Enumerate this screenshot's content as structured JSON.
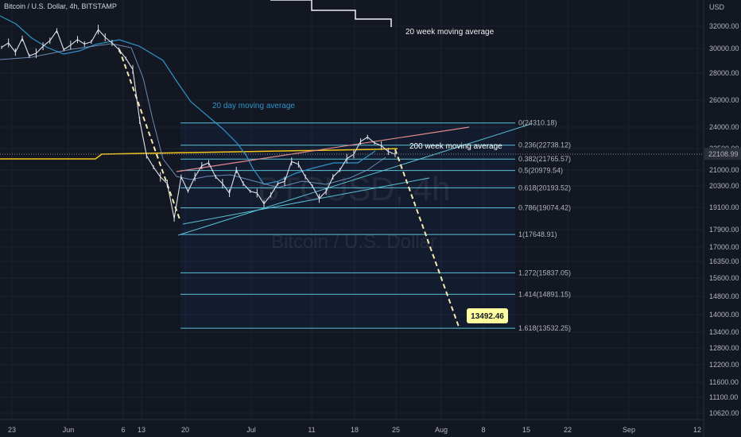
{
  "header": {
    "symbol_title": "Bitcoin / U.S. Dollar, 4h, BITSTAMP"
  },
  "watermark": {
    "symbol": "BTCUSD, 4h",
    "name": "Bitcoin / U.S. Dollar"
  },
  "colors": {
    "background": "#131722",
    "grid": "#1e2230",
    "fib": "#5ac1d6",
    "ma20d": "#2e93c9",
    "ma200w": "#f5c518",
    "ma20w": "#f0f0f0",
    "price_line": "#e0e3eb",
    "projection": "#f5e9b0"
  },
  "chart_data": {
    "type": "line",
    "ylabel": "USD",
    "y_ticks": [
      "32000.00",
      "30000.00",
      "28000.00",
      "26000.00",
      "24000.00",
      "22500.00",
      "21000.00",
      "20300.00",
      "19100.00",
      "17900.00",
      "17000.00",
      "16350.00",
      "15600.00",
      "14800.00",
      "14000.00",
      "13400.00",
      "12800.00",
      "12200.00",
      "11600.00",
      "11100.00",
      "10620.00"
    ],
    "x_ticks": [
      "23",
      "Jun",
      "6",
      "13",
      "20",
      "Jul",
      "11",
      "18",
      "25",
      "Aug",
      "8",
      "15",
      "22",
      "Sep",
      "12"
    ],
    "current_price": "22108.99",
    "target_label": "13492.46",
    "fib_levels": [
      {
        "label": "0(24310.18)",
        "price": 24310.18
      },
      {
        "label": "0.236(22738.12)",
        "price": 22738.12
      },
      {
        "label": "0.382(21765.57)",
        "price": 21765.57
      },
      {
        "label": "0.5(20979.54)",
        "price": 20979.54
      },
      {
        "label": "0.618(20193.52)",
        "price": 20193.52
      },
      {
        "label": "0.786(19074.42)",
        "price": 19074.42
      },
      {
        "label": "1(17648.91)",
        "price": 17648.91
      },
      {
        "label": "1.272(15837.05)",
        "price": 15837.05
      },
      {
        "label": "1.414(14891.15)",
        "price": 14891.15
      },
      {
        "label": "1.618(13532.25)",
        "price": 13532.25
      }
    ],
    "annotations": [
      "20 week moving average",
      "20 day moving average",
      "200 week moving average"
    ],
    "price_series": [
      30100,
      30500,
      29700,
      30900,
      29400,
      29600,
      30200,
      30700,
      31600,
      29900,
      30300,
      30800,
      30400,
      30600,
      31700,
      31000,
      30500,
      29900,
      29200,
      28300,
      24500,
      22000,
      21200,
      20700,
      20400,
      18500,
      20700,
      20000,
      20700,
      21300,
      21500,
      20700,
      20400,
      19900,
      21000,
      20400,
      20000,
      19900,
      19300,
      19800,
      20400,
      20500,
      21600,
      21400,
      20700,
      20300,
      19600,
      20000,
      20700,
      21000,
      21800,
      22100,
      23000,
      23300,
      22900,
      22700,
      22300,
      22100
    ]
  }
}
